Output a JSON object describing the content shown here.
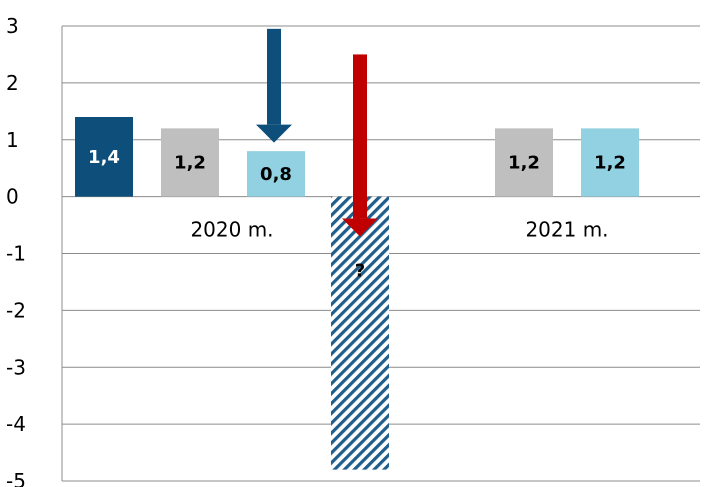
{
  "chart_data": {
    "type": "bar",
    "categories": [
      "2020 m.",
      "2021 m."
    ],
    "ylim": [
      -5,
      3
    ],
    "yticks": [
      "3",
      "2",
      "1",
      "0",
      "-1",
      "-2",
      "-3",
      "-4",
      "-5"
    ],
    "grid": true,
    "bars": [
      {
        "category": "2020 m.",
        "value": 1.4,
        "label": "1,4",
        "color": "#0d4f7a",
        "label_color": "#ffffff",
        "pattern": false
      },
      {
        "category": "2020 m.",
        "value": 1.2,
        "label": "1,2",
        "color": "#bfbfbf",
        "label_color": "#000000",
        "pattern": false
      },
      {
        "category": "2020 m.",
        "value": 0.8,
        "label": "0,8",
        "color": "#92d1e2",
        "label_color": "#000000",
        "pattern": false
      },
      {
        "category": "2020 m.",
        "value": -4.8,
        "label": "?",
        "color": "#1f5d8a",
        "label_color": "#000000",
        "pattern": true
      },
      {
        "category": "2021 m.",
        "value": 1.2,
        "label": "1,2",
        "color": "#bfbfbf",
        "label_color": "#000000",
        "pattern": false
      },
      {
        "category": "2021 m.",
        "value": 1.2,
        "label": "1,2",
        "color": "#92d1e2",
        "label_color": "#000000",
        "pattern": false
      }
    ],
    "annotations": [
      {
        "type": "arrow",
        "direction": "down",
        "from_value": 2.95,
        "to_value": 0.95,
        "color": "#0d4f7a",
        "over_bar": 2
      },
      {
        "type": "arrow",
        "direction": "down",
        "from_value": 2.5,
        "to_value": -0.7,
        "color": "#c00000",
        "over_bar": 3
      }
    ]
  }
}
